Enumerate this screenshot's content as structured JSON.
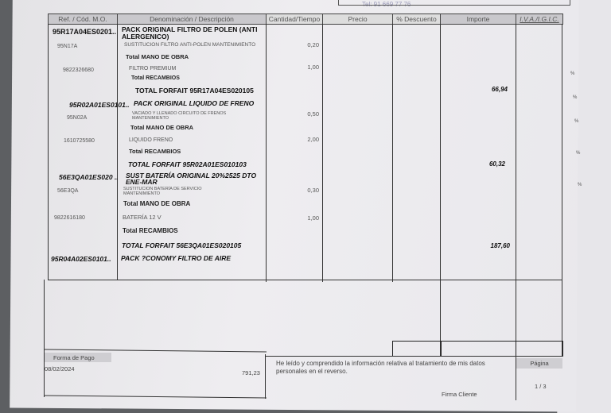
{
  "header_partial": {
    "phone": "Tel: 91 669 77 76"
  },
  "columns": [
    "Ref. / Cód. M.O.",
    "Denominación / Descripción",
    "Cantidad/Tiempo",
    "Precio",
    "% Descuento",
    "Importe",
    "I.V.A./I.G.I.C."
  ],
  "rows": [
    {
      "ref": "95R17A04ES0201..",
      "desc": "PACK ORIGINAL FILTRO DE POLEN (ANTI ALERGENICO)",
      "type": "pack"
    },
    {
      "ref": "95N17A",
      "desc": "SUSTITUCION FILTRO ANTI-POLEN MANTENIMIENTO",
      "qty": "0,20",
      "type": "item"
    },
    {
      "desc": "Total MANO DE OBRA",
      "type": "total"
    },
    {
      "ref": "9822326680",
      "desc": "FILTRO PREMIUM",
      "qty": "1,00",
      "type": "item"
    },
    {
      "desc": "Total RECAMBIOS",
      "type": "total"
    },
    {
      "desc": "TOTAL FORFAIT 95R17A04ES020105",
      "importe": "66,94",
      "type": "forfait"
    },
    {
      "ref": "95R02A01ES0101..",
      "desc": "PACK ORIGINAL LIQUIDO DE FRENO",
      "type": "pack"
    },
    {
      "ref": "95N02A",
      "desc": "VACIADO Y LLENADO CIRCUITO DE FRENOS MANTENIMIENTO",
      "qty": "0,50",
      "type": "item"
    },
    {
      "desc": "Total MANO DE OBRA",
      "type": "total"
    },
    {
      "ref": "1610725580",
      "desc": "LIQUIDO FRENO",
      "qty": "2,00",
      "type": "item"
    },
    {
      "desc": "Total RECAMBIOS",
      "type": "total"
    },
    {
      "desc": "TOTAL FORFAIT 95R02A01ES010103",
      "importe": "60,32",
      "type": "forfait"
    },
    {
      "ref": "56E3QA01ES020 ..",
      "desc": "SUST BATERÍA ORIGINAL 20%2525 DTO ENE-MAR",
      "type": "pack"
    },
    {
      "ref": "56E3QA",
      "desc": "SUSTITUCION BATERÍA DE SERVICIO MANTENIMIENTO",
      "qty": "0,30",
      "type": "item"
    },
    {
      "desc": "Total MANO DE OBRA",
      "type": "total"
    },
    {
      "ref": "9822616180",
      "desc": "BATERÍA 12 V",
      "qty": "1,00",
      "type": "item"
    },
    {
      "desc": "Total RECAMBIOS",
      "type": "total"
    },
    {
      "desc": "TOTAL FORFAIT 56E3QA01ES020105",
      "importe": "187,60",
      "type": "forfait"
    },
    {
      "ref": "95R04A02ES0101..",
      "desc": "PACK ?CONOMY FILTRO DE AIRE",
      "type": "pack"
    }
  ],
  "footer": {
    "payment_label": "Forma de Pago",
    "payment_date": "08/02/2024",
    "payment_amount": "791,23",
    "privacy_text": "He leído y comprendido la información relativa al tratamiento de mis datos personales en el reverso.",
    "signature_label": "Firma Cliente",
    "page_label": "Página",
    "page_value": "1 / 3"
  }
}
